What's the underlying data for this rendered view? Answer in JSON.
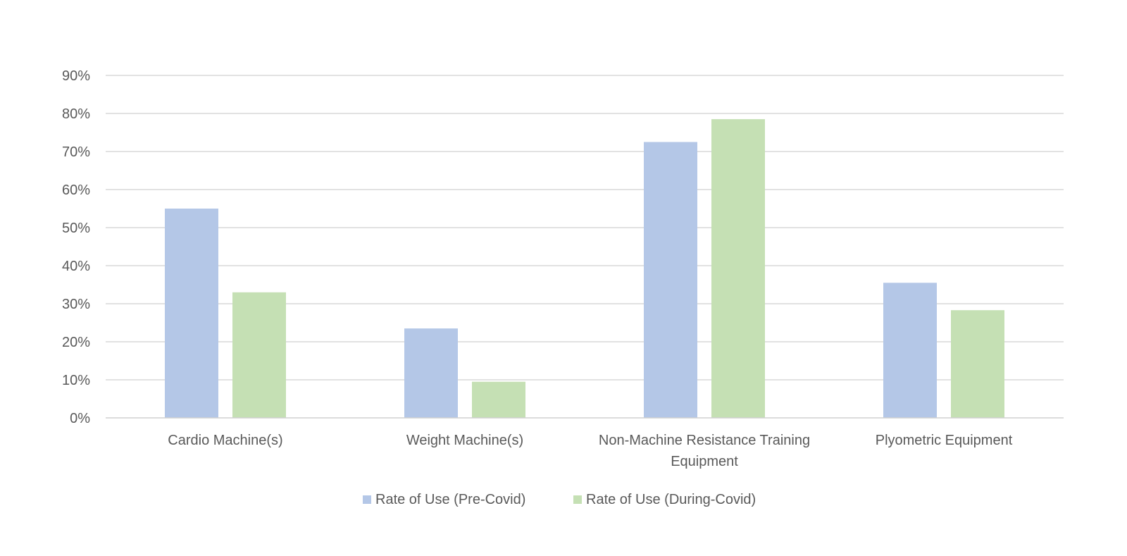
{
  "chart_data": {
    "type": "bar",
    "title": "",
    "xlabel": "",
    "ylabel": "",
    "categories": [
      [
        "Cardio Machine(s)"
      ],
      [
        "Weight Machine(s)"
      ],
      [
        "Non-Machine Resistance Training",
        "Equipment"
      ],
      [
        "Plyometric Equipment"
      ]
    ],
    "series": [
      {
        "name": "Rate of Use (Pre-Covid)",
        "color": "#b4c7e7",
        "values": [
          55,
          23.5,
          72.5,
          35.5
        ]
      },
      {
        "name": "Rate of Use (During-Covid)",
        "color": "#c5e0b4",
        "values": [
          33,
          9.5,
          78.5,
          28.3
        ]
      }
    ],
    "ylim": [
      0,
      90
    ],
    "yticks": [
      0,
      10,
      20,
      30,
      40,
      50,
      60,
      70,
      80,
      90
    ],
    "y_unit": "%",
    "grid": true,
    "legend_position": "bottom"
  }
}
